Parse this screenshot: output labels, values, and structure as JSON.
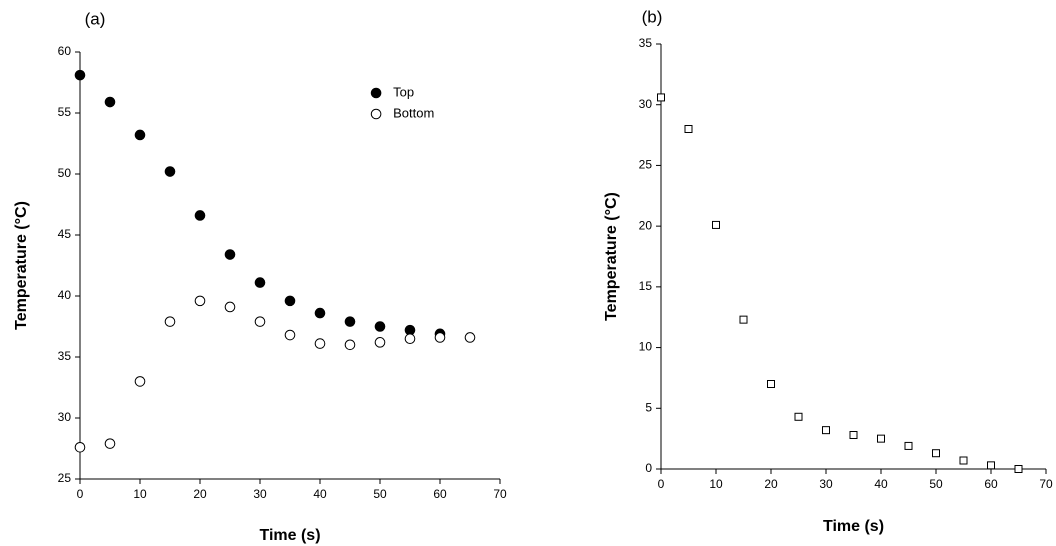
{
  "chart_data": [
    {
      "type": "scatter",
      "title": "(a)",
      "x_label": "Time (s)",
      "y_label": "Temperature (°C)",
      "xlim": [
        0,
        70
      ],
      "xticks": [
        0,
        10,
        20,
        30,
        40,
        50,
        60,
        70
      ],
      "ylim": [
        25,
        60
      ],
      "yticks": [
        25,
        30,
        35,
        40,
        45,
        50,
        55,
        60
      ],
      "legend": "upper right",
      "series": [
        {
          "name": "Top",
          "marker": "filled-circle",
          "color": "#000000",
          "x": [
            0,
            5,
            10,
            15,
            20,
            25,
            30,
            35,
            40,
            45,
            50,
            55,
            60
          ],
          "values": [
            58.1,
            55.9,
            53.2,
            50.2,
            46.6,
            43.4,
            41.1,
            39.6,
            38.6,
            37.9,
            37.5,
            37.2,
            36.9
          ]
        },
        {
          "name": "Bottom",
          "marker": "open-circle",
          "color": "#000000",
          "x": [
            0,
            5,
            10,
            15,
            20,
            25,
            30,
            35,
            40,
            45,
            50,
            55,
            60,
            65
          ],
          "values": [
            27.6,
            27.9,
            33.0,
            37.9,
            39.6,
            39.1,
            37.9,
            36.8,
            36.1,
            36.0,
            36.2,
            36.5,
            36.6,
            36.6
          ]
        }
      ]
    },
    {
      "type": "scatter",
      "title": "(b)",
      "x_label": "Time (s)",
      "y_label": "Temperature (°C)",
      "xlim": [
        0,
        70
      ],
      "xticks": [
        0,
        10,
        20,
        30,
        40,
        50,
        60,
        70
      ],
      "ylim": [
        0,
        35
      ],
      "yticks": [
        0,
        5,
        10,
        15,
        20,
        25,
        30,
        35
      ],
      "series": [
        {
          "marker": "open-square",
          "color": "#000000",
          "x": [
            0,
            5,
            10,
            15,
            20,
            25,
            30,
            35,
            40,
            45,
            50,
            55,
            60,
            65
          ],
          "values": [
            30.6,
            28.0,
            20.1,
            12.3,
            7.0,
            4.3,
            3.2,
            2.8,
            2.5,
            1.9,
            1.3,
            0.7,
            0.3,
            0.0
          ]
        }
      ]
    }
  ]
}
